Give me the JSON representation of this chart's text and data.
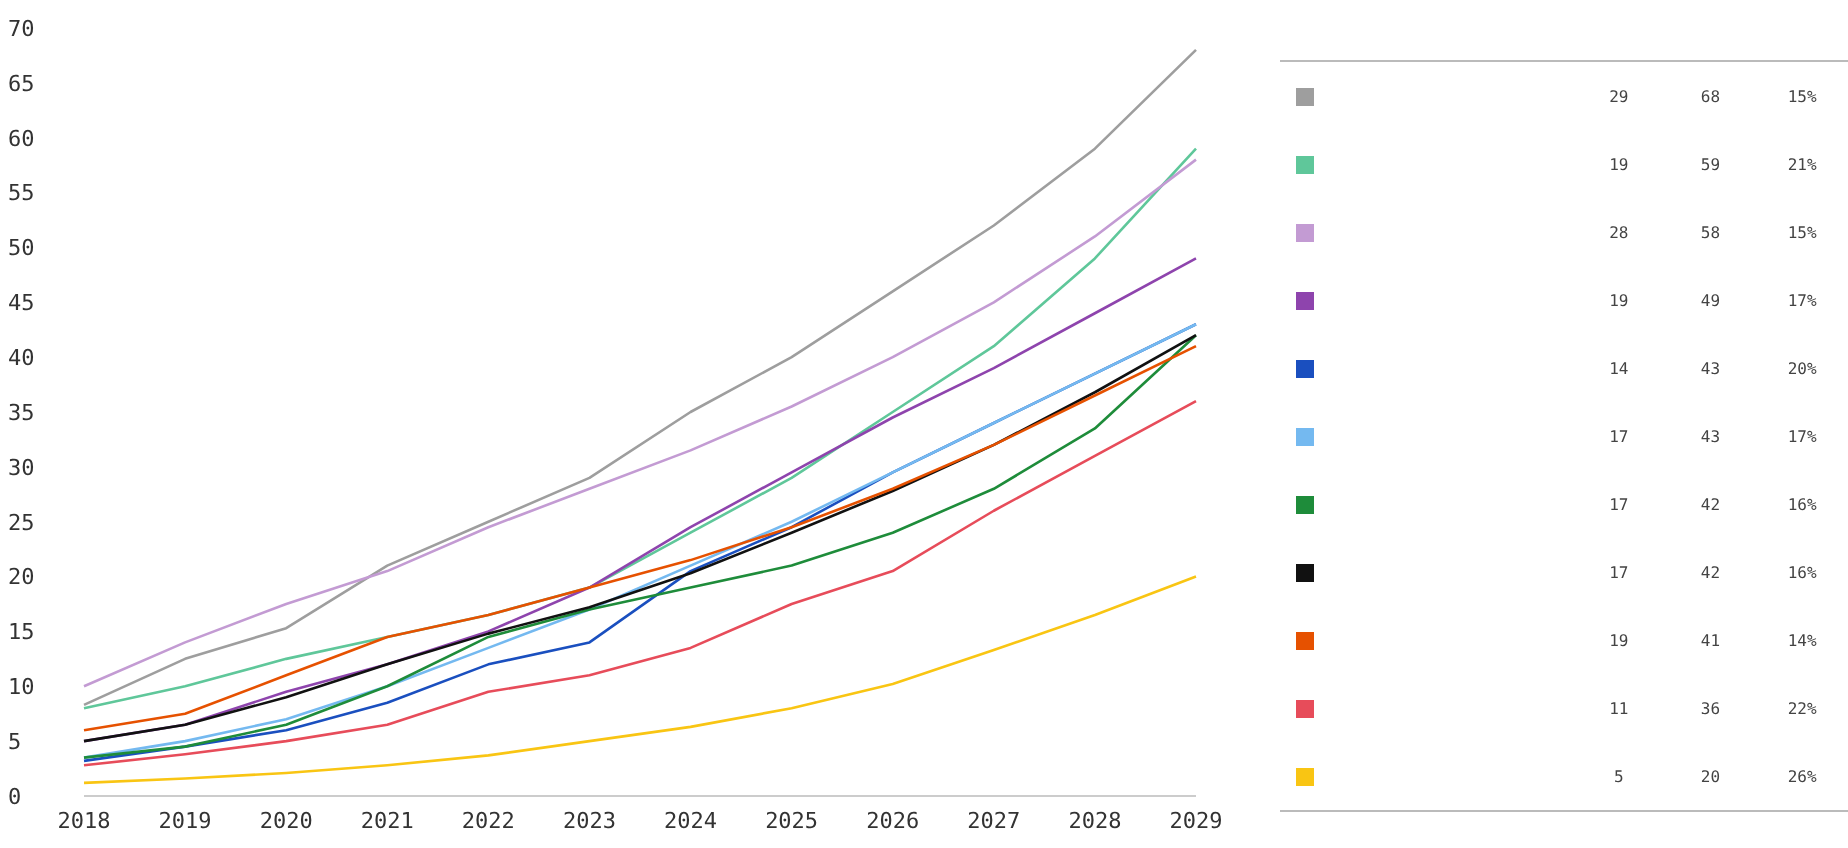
{
  "chart_data": {
    "type": "line",
    "categories": [
      "2018",
      "2019",
      "2020",
      "2021",
      "2022",
      "2023",
      "2024",
      "2025",
      "2026",
      "2027",
      "2028",
      "2029"
    ],
    "series": [
      {
        "color": "#9e9e9e",
        "values": [
          8.3,
          12.5,
          15.3,
          21,
          25,
          29,
          35,
          40,
          46,
          52,
          59,
          68
        ]
      },
      {
        "color": "#5fc79a",
        "values": [
          8,
          10,
          12.5,
          14.5,
          16.5,
          19,
          24,
          29,
          35,
          41,
          49,
          59
        ]
      },
      {
        "color": "#c39bd3",
        "values": [
          10,
          14,
          17.5,
          20.5,
          24.5,
          28,
          31.5,
          35.5,
          40,
          45,
          51,
          58
        ]
      },
      {
        "color": "#8e44ad",
        "values": [
          5,
          6.5,
          9.5,
          12,
          15,
          19,
          24.5,
          29.5,
          34.5,
          39,
          44,
          49
        ]
      },
      {
        "color": "#1a4fbf",
        "values": [
          3.2,
          4.5,
          6,
          8.5,
          12,
          14,
          20.5,
          24.5,
          29.5,
          34,
          38.5,
          43
        ]
      },
      {
        "color": "#74b9f0",
        "values": [
          3.5,
          5,
          7,
          10,
          13.5,
          17,
          21,
          25,
          29.5,
          34,
          38.5,
          43
        ]
      },
      {
        "color": "#1e8c3a",
        "values": [
          3.5,
          4.5,
          6.5,
          10,
          14.5,
          17,
          19,
          21,
          24,
          28,
          33.5,
          42
        ]
      },
      {
        "color": "#111111",
        "values": [
          5,
          6.5,
          9,
          12,
          14.8,
          17.2,
          20.3,
          24,
          27.8,
          32,
          36.8,
          42
        ]
      },
      {
        "color": "#e65100",
        "values": [
          6,
          7.5,
          11,
          14.5,
          16.5,
          19,
          21.5,
          24.5,
          28,
          32,
          36.5,
          41
        ]
      },
      {
        "color": "#e74c5a",
        "values": [
          2.8,
          3.8,
          5,
          6.5,
          9.5,
          11,
          13.5,
          17.5,
          20.5,
          26,
          31,
          36
        ]
      },
      {
        "color": "#f9c513",
        "values": [
          1.2,
          1.6,
          2.1,
          2.8,
          3.7,
          5,
          6.3,
          8,
          10.2,
          13.3,
          16.5,
          20
        ]
      }
    ],
    "ylim": [
      0,
      70
    ],
    "yticks": [
      0,
      5,
      10,
      15,
      20,
      25,
      30,
      35,
      40,
      45,
      50,
      55,
      60,
      65,
      70
    ],
    "grid": false,
    "marker": "none",
    "line_style": "solid",
    "annotations": [
      "29",
      "68",
      "15%",
      "19",
      "59",
      "21%",
      "28",
      "58",
      "15%",
      "19",
      "49",
      "17%",
      "14",
      "43",
      "20%",
      "17",
      "43",
      "17%",
      "17",
      "42",
      "16%",
      "17",
      "42",
      "16%",
      "19",
      "41",
      "14%",
      "11",
      "36",
      "22%",
      "5",
      "20",
      "26%"
    ]
  }
}
